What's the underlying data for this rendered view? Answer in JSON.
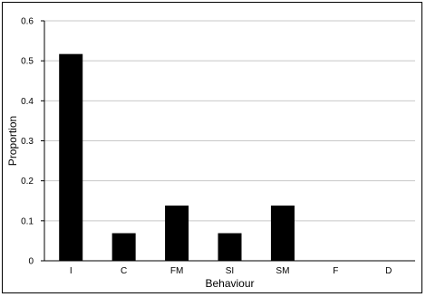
{
  "chart_data": {
    "type": "bar",
    "title": "",
    "xlabel": "Behaviour",
    "ylabel": "Proportion",
    "categories": [
      "I",
      "C",
      "FM",
      "SI",
      "SM",
      "F",
      "D"
    ],
    "values": [
      0.517,
      0.069,
      0.138,
      0.069,
      0.138,
      0,
      0
    ],
    "ylim": [
      0,
      0.6
    ],
    "yticks": [
      "0",
      "0.1",
      "0.2",
      "0.3",
      "0.4",
      "0.5",
      "0.6"
    ],
    "grid": true,
    "legend": "none",
    "colors": {
      "bar": "#000000",
      "grid": "#c8c8c8",
      "axis": "#000000"
    }
  }
}
